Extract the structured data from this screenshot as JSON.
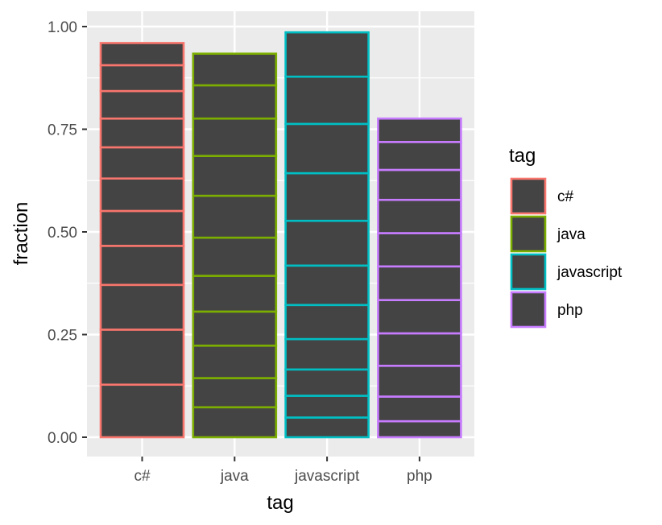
{
  "chart_data": {
    "type": "bar",
    "stacked": true,
    "xlabel": "tag",
    "ylabel": "fraction",
    "ylim": [
      0,
      1.0
    ],
    "yticks": [
      0.0,
      0.25,
      0.5,
      0.75,
      1.0
    ],
    "ytick_labels": [
      "0.00",
      "0.25",
      "0.50",
      "0.75",
      "1.00"
    ],
    "grid": true,
    "categories": [
      "c#",
      "java",
      "javascript",
      "php"
    ],
    "segment_fill": "#444444",
    "stacks": [
      {
        "category": "c#",
        "color": "#F8766D",
        "boundaries": [
          0,
          0.128,
          0.262,
          0.371,
          0.466,
          0.551,
          0.63,
          0.706,
          0.776,
          0.843,
          0.906,
          0.96
        ]
      },
      {
        "category": "java",
        "color": "#7CAE00",
        "boundaries": [
          0,
          0.073,
          0.144,
          0.223,
          0.306,
          0.393,
          0.486,
          0.588,
          0.685,
          0.776,
          0.857,
          0.934
        ]
      },
      {
        "category": "javascript",
        "color": "#00BFC4",
        "boundaries": [
          0,
          0.048,
          0.101,
          0.165,
          0.239,
          0.322,
          0.418,
          0.527,
          0.643,
          0.763,
          0.878,
          0.986
        ]
      },
      {
        "category": "php",
        "color": "#C77CFF",
        "boundaries": [
          0,
          0.039,
          0.099,
          0.174,
          0.253,
          0.334,
          0.416,
          0.497,
          0.578,
          0.651,
          0.719,
          0.776
        ]
      }
    ],
    "legend": {
      "title": "tag",
      "position": "right",
      "entries": [
        {
          "label": "c#",
          "color": "#F8766D"
        },
        {
          "label": "java",
          "color": "#7CAE00"
        },
        {
          "label": "javascript",
          "color": "#00BFC4"
        },
        {
          "label": "php",
          "color": "#C77CFF"
        }
      ]
    }
  },
  "colors": {
    "panel_background": "#EBEBEB",
    "grid": "#FFFFFF"
  }
}
